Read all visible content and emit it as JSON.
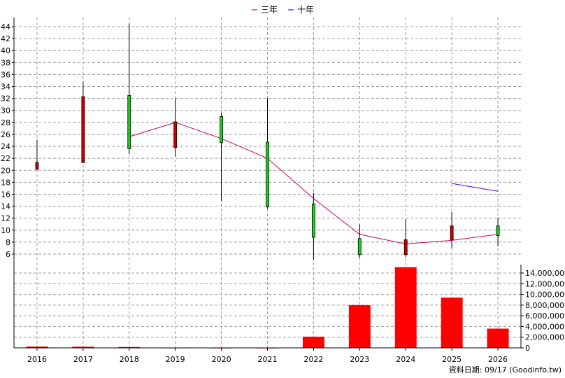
{
  "chart_data": {
    "type": "candlestick+line+bar",
    "categories": [
      "2016",
      "2017",
      "2018",
      "2019",
      "2020",
      "2021",
      "2022",
      "2023",
      "2024",
      "2025",
      "2026"
    ],
    "legend": [
      {
        "name": "三年",
        "color": "#cc0066"
      },
      {
        "name": "十年",
        "color": "#6600cc"
      }
    ],
    "price_axis": {
      "ticks": [
        6,
        8,
        10,
        12,
        14,
        16,
        18,
        20,
        22,
        24,
        26,
        28,
        30,
        32,
        34,
        36,
        38,
        40,
        42,
        44
      ],
      "ylim": [
        3.6,
        45.5
      ]
    },
    "volume_axis": {
      "ticks": [
        0,
        2000000,
        4000000,
        6000000,
        8000000,
        10000000,
        12000000,
        14000000
      ],
      "tick_labels": [
        "0",
        "2,000,000",
        "4,000,000",
        "6,000,000",
        "8,000,000",
        "10,000,000",
        "12,000,000",
        "14,000,000"
      ],
      "ylim": [
        0,
        16000000
      ]
    },
    "candles": [
      {
        "year": "2016",
        "open": 20.2,
        "close": 21.3,
        "high": 25.1,
        "low": 20.0,
        "color": "#cc0000"
      },
      {
        "year": "2017",
        "open": 21.3,
        "close": 32.3,
        "high": 34.8,
        "low": 21.2,
        "color": "#cc0000"
      },
      {
        "year": "2018",
        "open": 32.5,
        "close": 23.6,
        "high": 44.5,
        "low": 22.7,
        "color": "#22cc22"
      },
      {
        "year": "2019",
        "open": 23.8,
        "close": 28.1,
        "high": 32.0,
        "low": 22.3,
        "color": "#cc0000"
      },
      {
        "year": "2020",
        "open": 29.0,
        "close": 24.6,
        "high": 29.6,
        "low": 14.9,
        "color": "#22cc22"
      },
      {
        "year": "2021",
        "open": 24.7,
        "close": 13.9,
        "high": 32.0,
        "low": 13.6,
        "color": "#22cc22"
      },
      {
        "year": "2022",
        "open": 14.4,
        "close": 8.8,
        "high": 16.2,
        "low": 5.0,
        "color": "#22cc22"
      },
      {
        "year": "2023",
        "open": 8.6,
        "close": 5.9,
        "high": 11.0,
        "low": 5.4,
        "color": "#22cc22"
      },
      {
        "year": "2024",
        "open": 5.9,
        "close": 8.4,
        "high": 11.8,
        "low": 5.5,
        "color": "#cc0000"
      },
      {
        "year": "2025",
        "open": 8.4,
        "close": 10.7,
        "high": 13.0,
        "low": 7.0,
        "color": "#cc0000"
      },
      {
        "year": "2026",
        "open": 10.7,
        "close": 9.1,
        "high": 12.1,
        "low": 7.3,
        "color": "#22cc22"
      }
    ],
    "series": [
      {
        "name": "三年",
        "color": "#cc0066",
        "points": [
          [
            "2018",
            25.6
          ],
          [
            "2019",
            28.0
          ],
          [
            "2020",
            25.3
          ],
          [
            "2021",
            22.0
          ],
          [
            "2022",
            15.3
          ],
          [
            "2023",
            9.3
          ],
          [
            "2024",
            7.7
          ],
          [
            "2025",
            8.3
          ],
          [
            "2026",
            9.3
          ]
        ]
      },
      {
        "name": "十年",
        "color": "#6600cc",
        "points": [
          [
            "2025",
            17.8
          ],
          [
            "2026",
            16.5
          ]
        ]
      }
    ],
    "volume": {
      "color": "#ff0000",
      "values": [
        250000,
        220000,
        160000,
        60000,
        40000,
        40000,
        2100000,
        8000000,
        15100000,
        9400000,
        3600000
      ]
    },
    "footer": "資料日期: 09/17  (Goodinfo.tw)"
  }
}
